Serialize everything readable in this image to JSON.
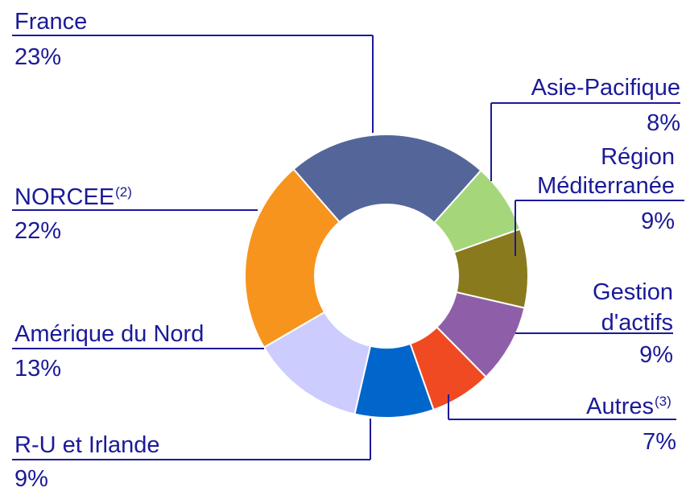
{
  "chart_data": {
    "type": "donut",
    "categories": [
      "France",
      "Asie-Pacifique",
      [
        "Région",
        "Méditerranée"
      ],
      [
        "Gestion",
        "d'actifs"
      ],
      "Autres",
      "R-U et Irlande",
      "Amérique du Nord",
      "NORCEE"
    ],
    "notes": [
      null,
      null,
      null,
      null,
      "(3)",
      null,
      null,
      "(2)"
    ],
    "values": [
      23,
      8,
      9,
      9,
      7,
      9,
      13,
      22
    ],
    "value_labels": [
      "23%",
      "8%",
      "9%",
      "9%",
      "7%",
      "9%",
      "13%",
      "22%"
    ],
    "colors": [
      "#546699",
      "#a6d67a",
      "#8a7a1e",
      "#8e5fa8",
      "#f04a23",
      "#0066cc",
      "#ccccff",
      "#f7941d"
    ]
  }
}
